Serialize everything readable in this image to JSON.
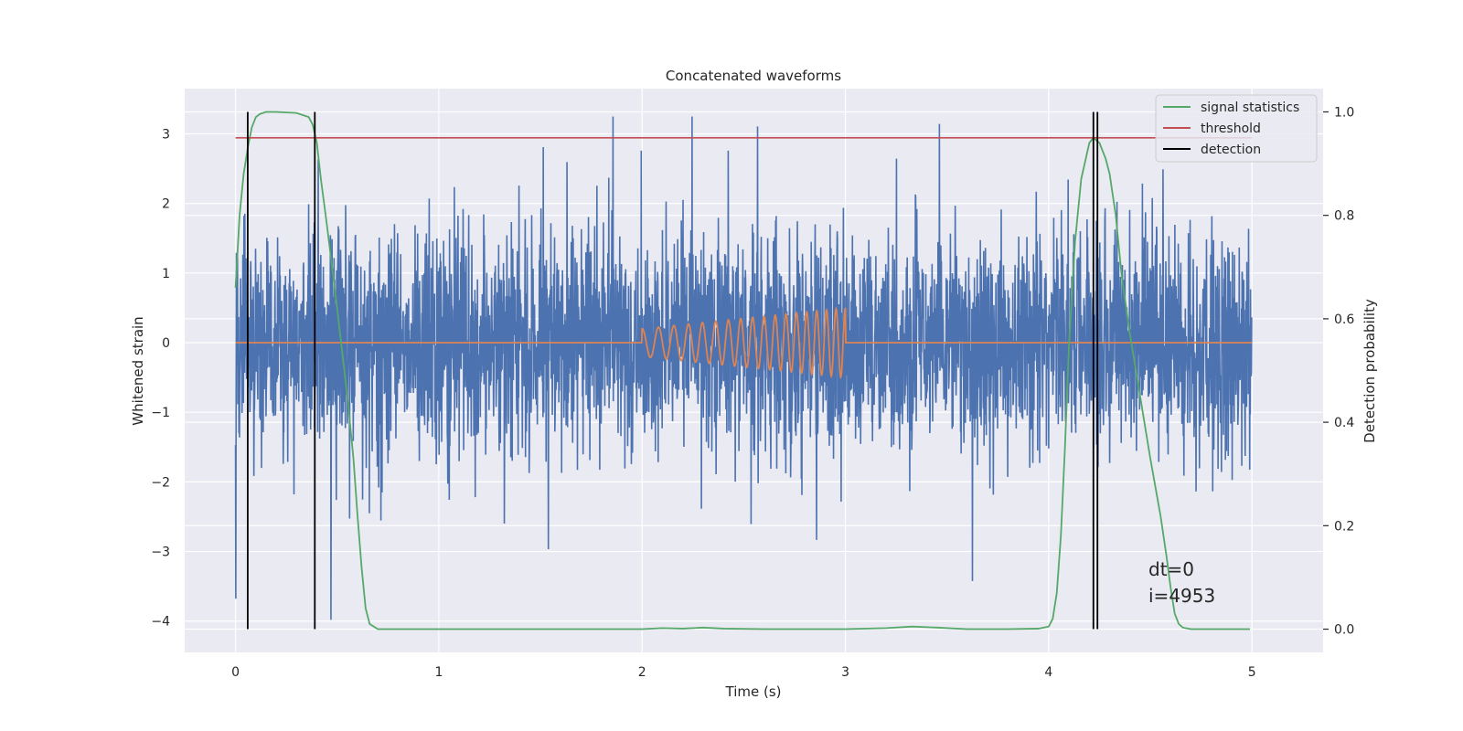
{
  "chart_data": {
    "type": "line",
    "title": "Concatenated waveforms",
    "xlabel": "Time (s)",
    "ylabel": "Whitened strain",
    "y2label": "Detection probability",
    "xlim": [
      -0.25,
      5.35
    ],
    "ylim": [
      -4.45,
      3.65
    ],
    "y2lim": [
      -0.045,
      1.045
    ],
    "x_ticks": [
      0,
      1,
      2,
      3,
      4,
      5
    ],
    "y_ticks": [
      -4,
      -3,
      -2,
      -1,
      0,
      1,
      2,
      3
    ],
    "y2_ticks": [
      0.0,
      0.2,
      0.4,
      0.6,
      0.8,
      1.0
    ],
    "grid": true,
    "legend_position": "top-right",
    "legend": [
      "signal statistics",
      "threshold",
      "detection"
    ],
    "colors": {
      "background": "#eaeaf2",
      "grid": "#ffffff",
      "noise": "#4c72b0",
      "injected": "#dd8452",
      "signal_statistics": "#55a868",
      "threshold": "#c44e52",
      "detection": "#000000"
    },
    "series": [
      {
        "name": "",
        "axis": "left",
        "kind": "noise-strain",
        "x_range": [
          0,
          5
        ],
        "typical_band": [
          -1.2,
          1.2
        ],
        "extremes": [
          -4.1,
          3.25
        ]
      },
      {
        "name": "",
        "axis": "left",
        "kind": "injected-chirp",
        "x_range": [
          0,
          5
        ],
        "chirp_x_range": [
          2.0,
          3.0
        ],
        "amplitude_range": [
          0.2,
          0.5
        ],
        "frequency_range_hz": [
          12,
          22
        ]
      },
      {
        "name": "signal statistics",
        "axis": "right",
        "x": [
          0.0,
          0.02,
          0.04,
          0.06,
          0.08,
          0.1,
          0.12,
          0.15,
          0.2,
          0.3,
          0.36,
          0.38,
          0.4,
          0.42,
          0.45,
          0.5,
          0.55,
          0.58,
          0.6,
          0.62,
          0.64,
          0.66,
          0.7,
          1.0,
          2.0,
          2.1,
          2.2,
          2.3,
          2.4,
          2.6,
          3.0,
          3.2,
          3.33,
          3.45,
          3.6,
          3.8,
          3.95,
          4.0,
          4.02,
          4.04,
          4.06,
          4.08,
          4.1,
          4.13,
          4.16,
          4.2,
          4.22,
          4.25,
          4.28,
          4.3,
          4.33,
          4.36,
          4.4,
          4.45,
          4.5,
          4.55,
          4.58,
          4.6,
          4.62,
          4.64,
          4.66,
          4.7,
          4.8,
          4.99
        ],
        "values": [
          0.66,
          0.8,
          0.88,
          0.93,
          0.97,
          0.99,
          0.996,
          1.0,
          1.0,
          0.998,
          0.99,
          0.975,
          0.94,
          0.87,
          0.78,
          0.62,
          0.45,
          0.33,
          0.22,
          0.12,
          0.04,
          0.01,
          0.0,
          0.0,
          0.0,
          0.002,
          0.001,
          0.003,
          0.001,
          0.0,
          0.0,
          0.002,
          0.005,
          0.003,
          0.0,
          0.0,
          0.001,
          0.005,
          0.02,
          0.07,
          0.18,
          0.35,
          0.55,
          0.75,
          0.87,
          0.94,
          0.95,
          0.94,
          0.91,
          0.88,
          0.8,
          0.68,
          0.57,
          0.45,
          0.33,
          0.22,
          0.14,
          0.08,
          0.03,
          0.01,
          0.003,
          0.0,
          0.0,
          0.0
        ]
      },
      {
        "name": "threshold",
        "axis": "right",
        "x": [
          0,
          5
        ],
        "values": [
          0.95,
          0.95
        ]
      }
    ],
    "detections": [
      0.06,
      0.39,
      4.22,
      4.24
    ],
    "annotations": [
      "dt=0",
      "i=4953"
    ]
  }
}
